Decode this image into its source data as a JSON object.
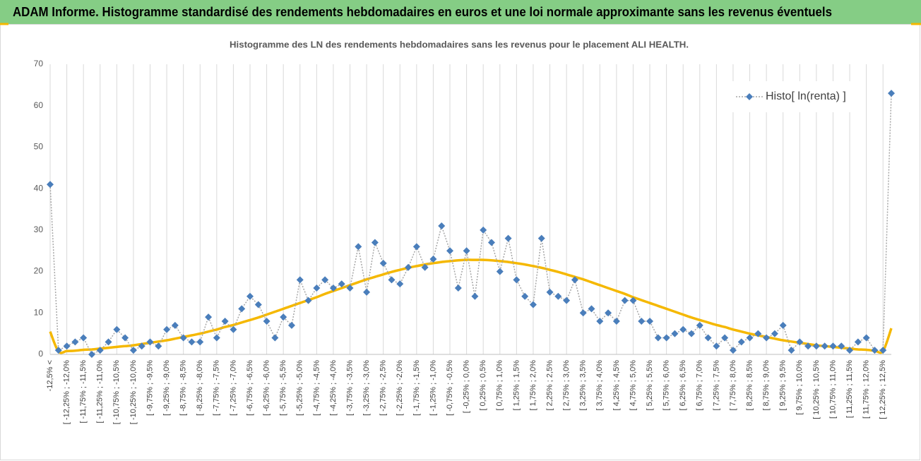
{
  "header": {
    "title": "ADAM Informe. Histogramme standardisé des rendements hebdomadaires en euros et une loi normale approximante sans les revenus éventuels"
  },
  "chart_data": {
    "type": "line",
    "title": "Histogramme des LN des rendements hebdomadaires sans les revenus pour le placement ALI HEALTH.",
    "categories": [
      "-12,5% <",
      null,
      "[ -12,25% ; -12,0%",
      null,
      "[ -11,75% ; -11,5%",
      null,
      "[ -11,25% ; -11,0%",
      null,
      "[ -10,75% ; -10,5%",
      null,
      "[ -10,25% ; -10,0%",
      null,
      "[ -9,75% ; -9,5%",
      null,
      "[ -9,25% ; -9,0%",
      null,
      "[ -8,75% ; -8,5%",
      null,
      "[ -8,25% ; -8,0%",
      null,
      "[ -7,75% ; -7,5%",
      null,
      "[ -7,25% ; -7,0%",
      null,
      "[ -6,75% ; -6,5%",
      null,
      "[ -6,25% ; -6,0%",
      null,
      "[ -5,75% ; -5,5%",
      null,
      "[ -5,25% ; -5,0%",
      null,
      "[ -4,75% ; -4,5%",
      null,
      "[ -4,25% ; -4,0%",
      null,
      "[ -3,75% ; -3,5%",
      null,
      "[ -3,25% ; -3,0%",
      null,
      "[ -2,75% ; -2,5%",
      null,
      "[ -2,25% ; -2,0%",
      null,
      "[ -1,75% ; -1,5%",
      null,
      "[ -1,25% ; -1,0%",
      null,
      "[ -0,75% ; -0,5%",
      null,
      "[ -0,25% ; 0,0%",
      null,
      "[ 0,25% ; 0,5%",
      null,
      "[ 0,75% ; 1,0%",
      null,
      "[ 1,25% ; 1,5%",
      null,
      "[ 1,75% ; 2,0%",
      null,
      "[ 2,25% ; 2,5%",
      null,
      "[ 2,75% ; 3,0%",
      null,
      "[ 3,25% ; 3,5%",
      null,
      "[ 3,75% ; 4,0%",
      null,
      "[ 4,25% ; 4,5%",
      null,
      "[ 4,75% ; 5,0%",
      null,
      "[ 5,25% ; 5,5%",
      null,
      "[ 5,75% ; 6,0%",
      null,
      "[ 6,25% ; 6,5%",
      null,
      "[ 6,75% ; 7,0%",
      null,
      "[ 7,25% ; 7,5%",
      null,
      "[ 7,75% ; 8,0%",
      null,
      "[ 8,25% ; 8,5%",
      null,
      "[ 8,75% ; 9,0%",
      null,
      "[ 9,25% ; 9,5%",
      null,
      "[ 9,75% ; 10,0%",
      null,
      "[ 10,25% ; 10,5%",
      null,
      "[ 10,75% ; 11,0%",
      null,
      "[ 11,25% ; 11,5%",
      null,
      "[ 11,75% ; 12,0%",
      null,
      "[ 12,25% ; 12,5%",
      null
    ],
    "series": [
      {
        "name": "Histo[ ln(renta) ]",
        "color": "#4a7ebb",
        "line_color": "#a6a6a6",
        "line_style": "dotted",
        "marker": "diamond",
        "values": [
          41,
          1,
          2,
          3,
          4,
          0,
          1,
          3,
          6,
          4,
          1,
          2,
          3,
          2,
          6,
          7,
          4,
          3,
          3,
          9,
          4,
          8,
          6,
          11,
          14,
          12,
          8,
          4,
          9,
          7,
          18,
          13,
          16,
          18,
          16,
          17,
          16,
          26,
          15,
          27,
          22,
          18,
          17,
          21,
          26,
          21,
          23,
          31,
          25,
          16,
          25,
          14,
          30,
          27,
          20,
          28,
          18,
          14,
          12,
          28,
          15,
          14,
          13,
          18,
          10,
          11,
          8,
          10,
          8,
          13,
          13,
          8,
          8,
          4,
          4,
          5,
          6,
          5,
          7,
          4,
          2,
          4,
          1,
          3,
          4,
          5,
          4,
          5,
          7,
          1,
          3,
          2,
          2,
          2,
          2,
          2,
          1,
          3,
          4,
          1,
          1,
          63
        ]
      },
      {
        "color": "#f5b800",
        "line_style": "solid",
        "marker": "none",
        "values": [
          5.5,
          0.7,
          0.8,
          0.9,
          1.1,
          1.2,
          1.4,
          1.6,
          1.8,
          2.0,
          2.2,
          2.5,
          2.8,
          3.1,
          3.4,
          3.8,
          4.2,
          4.6,
          5.0,
          5.5,
          6.0,
          6.6,
          7.1,
          7.7,
          8.3,
          8.9,
          9.6,
          10.3,
          11.0,
          11.7,
          12.4,
          13.1,
          13.8,
          14.6,
          15.3,
          16.0,
          16.7,
          17.4,
          18.1,
          18.7,
          19.3,
          19.9,
          20.4,
          20.9,
          21.3,
          21.7,
          22.0,
          22.3,
          22.5,
          22.7,
          22.8,
          22.8,
          22.8,
          22.7,
          22.5,
          22.3,
          22.0,
          21.7,
          21.3,
          20.9,
          20.4,
          19.9,
          19.3,
          18.7,
          18.1,
          17.4,
          16.7,
          16.0,
          15.3,
          14.6,
          13.8,
          13.1,
          12.4,
          11.7,
          11.0,
          10.3,
          9.6,
          8.9,
          8.3,
          7.7,
          7.1,
          6.6,
          6.0,
          5.5,
          5.0,
          4.6,
          4.2,
          3.8,
          3.4,
          3.1,
          2.8,
          2.5,
          2.2,
          2.0,
          1.8,
          1.6,
          1.4,
          1.2,
          1.1,
          0.9,
          0.8,
          6.3
        ]
      }
    ],
    "ylim": [
      0,
      70
    ],
    "yticks": [
      0,
      10,
      20,
      30,
      40,
      50,
      60,
      70
    ],
    "x_grid": true,
    "legend": "upper right"
  }
}
